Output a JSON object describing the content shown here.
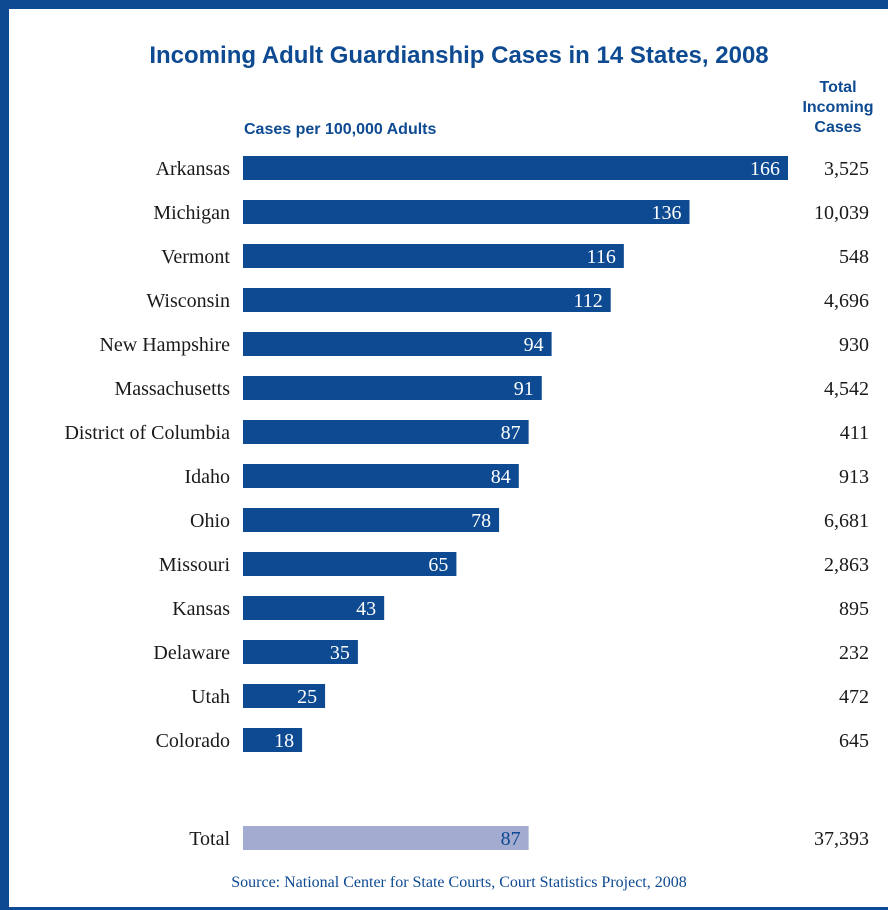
{
  "chart_data": {
    "type": "bar",
    "title": "Incoming Adult Guardianship Cases in 14 States, 2008",
    "subtitle": "Cases per 100,000 Adults",
    "right_column_header": "Total Incoming Cases",
    "right_column_header_lines": [
      "Total",
      "Incoming",
      "Cases"
    ],
    "categories": [
      "Arkansas",
      "Michigan",
      "Vermont",
      "Wisconsin",
      "New Hampshire",
      "Massachusetts",
      "District of Columbia",
      "Idaho",
      "Ohio",
      "Missouri",
      "Kansas",
      "Delaware",
      "Utah",
      "Colorado"
    ],
    "values": [
      166,
      136,
      116,
      112,
      94,
      91,
      87,
      84,
      78,
      65,
      43,
      35,
      25,
      18
    ],
    "value_labels": [
      "166",
      "136",
      "116",
      "112",
      "94",
      "91",
      "87",
      "84",
      "78",
      "65",
      "43",
      "35",
      "25",
      "18"
    ],
    "total_cases": [
      "3,525",
      "10,039",
      "548",
      "4,696",
      "930",
      "4,542",
      "411",
      "913",
      "6,681",
      "2,863",
      "895",
      "232",
      "472",
      "645"
    ],
    "total": {
      "label": "Total",
      "value": 87,
      "value_label": "87",
      "cases": "37,393"
    },
    "orientation": "horizontal",
    "xlim": [
      0,
      166
    ],
    "grid": false,
    "colors": {
      "bar": "#0d4a91",
      "total_bar": "#a3abd0",
      "text": "#1a1a1a",
      "accent": "#0d4a91",
      "bar_label": "#ffffff"
    }
  },
  "source": "Source:  National Center for State Courts, Court Statistics Project, 2008"
}
